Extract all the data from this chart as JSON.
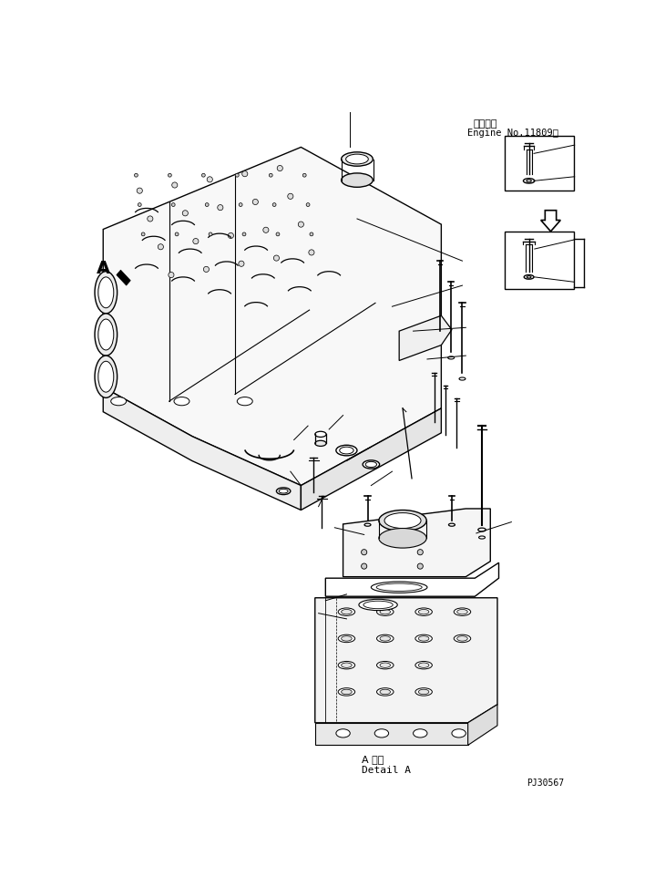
{
  "bg_color": "#ffffff",
  "line_color": "#000000",
  "title_top_jp": "適用号機",
  "title_top_en": "Engine No.11809～",
  "detail_label_jp": "A 詳細",
  "detail_label_en": "Detail A",
  "part_number": "PJ30567",
  "label_A": "A",
  "figsize": [
    7.19,
    9.73
  ],
  "dpi": 100
}
